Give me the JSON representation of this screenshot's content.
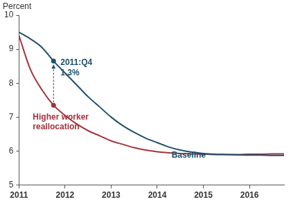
{
  "chart_data": {
    "type": "line",
    "y_label": "Percent",
    "x": [
      2011,
      2011.25,
      2011.5,
      2011.75,
      2012,
      2012.25,
      2012.5,
      2012.75,
      2013,
      2013.25,
      2013.5,
      2013.75,
      2014,
      2014.25,
      2014.5,
      2014.75,
      2015,
      2015.25,
      2015.5,
      2015.75,
      2016,
      2016.25,
      2016.5,
      2016.75
    ],
    "series": [
      {
        "name": "Baseline",
        "color": "#1d4f6e",
        "values": [
          9.5,
          9.3,
          9.05,
          8.65,
          8.3,
          7.95,
          7.6,
          7.3,
          7.0,
          6.75,
          6.55,
          6.38,
          6.25,
          6.12,
          6.03,
          5.97,
          5.93,
          5.91,
          5.9,
          5.89,
          5.88,
          5.88,
          5.87,
          5.87
        ]
      },
      {
        "name": "Higher worker reallocation",
        "color": "#a5323c",
        "values": [
          9.4,
          8.4,
          7.8,
          7.35,
          7.05,
          6.8,
          6.6,
          6.45,
          6.3,
          6.2,
          6.1,
          6.03,
          5.98,
          5.95,
          5.93,
          5.92,
          5.91,
          5.9,
          5.9,
          5.9,
          5.91,
          5.91,
          5.92,
          5.92
        ]
      }
    ],
    "xlim": [
      2011,
      2016.75
    ],
    "xticks": [
      2011,
      2012,
      2013,
      2014,
      2015,
      2016
    ],
    "ylim": [
      5,
      10
    ],
    "yticks": [
      5,
      6,
      7,
      8,
      9,
      10
    ],
    "grid": false,
    "annotations": [
      {
        "x": 2011.75,
        "label": "2011:Q4",
        "value": 1.3,
        "value_label": "1.3%"
      }
    ]
  }
}
